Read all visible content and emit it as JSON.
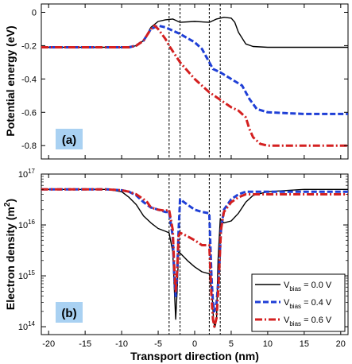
{
  "chart_data": [
    {
      "type": "line",
      "panel_label": "(a)",
      "ylabel": "Potential energy (eV)",
      "xlim": [
        -21,
        21
      ],
      "ylim": [
        -0.88,
        0.05
      ],
      "y_ticks": [
        0,
        -0.2,
        -0.4,
        -0.6,
        -0.8
      ],
      "y_tick_labels": [
        "0",
        "-0.2",
        "-0.4",
        "-0.6",
        "-0.8"
      ],
      "grid": false,
      "vertical_dashed_lines_x": [
        -3.5,
        -2.0,
        2.0,
        3.5
      ],
      "series": [
        {
          "color": "#000000",
          "style": "solid",
          "x": [
            -21,
            -11,
            -9,
            -8,
            -7,
            -6,
            -5,
            -4,
            -3,
            -2,
            0,
            2,
            3,
            4,
            5,
            5.5,
            6,
            7,
            8,
            10,
            15,
            21
          ],
          "y": [
            -0.21,
            -0.21,
            -0.21,
            -0.2,
            -0.17,
            -0.09,
            -0.055,
            -0.045,
            -0.04,
            -0.06,
            -0.055,
            -0.06,
            -0.04,
            -0.03,
            -0.035,
            -0.06,
            -0.12,
            -0.19,
            -0.205,
            -0.21,
            -0.21,
            -0.21
          ]
        },
        {
          "color": "#1f3fd6",
          "style": "dashed",
          "x": [
            -21,
            -11,
            -9,
            -8,
            -7,
            -6,
            -5,
            -4,
            -3.5,
            -2,
            0,
            1,
            2,
            2.5,
            3.5,
            5,
            6.5,
            7.5,
            8.5,
            10,
            15,
            21
          ],
          "y": [
            -0.21,
            -0.21,
            -0.21,
            -0.2,
            -0.17,
            -0.1,
            -0.08,
            -0.09,
            -0.1,
            -0.13,
            -0.18,
            -0.22,
            -0.3,
            -0.34,
            -0.36,
            -0.4,
            -0.44,
            -0.52,
            -0.58,
            -0.6,
            -0.61,
            -0.61
          ]
        },
        {
          "color": "#d42020",
          "style": "dashdot",
          "x": [
            -21,
            -11,
            -9,
            -8,
            -7,
            -6,
            -5.5,
            -5,
            -4,
            -3.5,
            -2,
            0,
            2,
            4,
            5,
            6,
            7,
            7.5,
            8,
            9,
            10,
            15,
            21
          ],
          "y": [
            -0.21,
            -0.21,
            -0.21,
            -0.2,
            -0.17,
            -0.1,
            -0.08,
            -0.1,
            -0.16,
            -0.2,
            -0.3,
            -0.4,
            -0.48,
            -0.54,
            -0.57,
            -0.59,
            -0.63,
            -0.7,
            -0.75,
            -0.79,
            -0.8,
            -0.8,
            -0.8
          ]
        }
      ]
    },
    {
      "type": "line",
      "panel_label": "(b)",
      "xlabel": "Transport direction (nm)",
      "ylabel": "Electron density (m",
      "ylabel_sup": "2",
      "ylabel_end": ")",
      "xlim": [
        -21,
        21
      ],
      "x_ticks": [
        -20,
        -15,
        -10,
        -5,
        0,
        5,
        10,
        15,
        20
      ],
      "x_tick_labels": [
        "-20",
        "-15",
        "-10",
        "-5",
        "0",
        "5",
        "10",
        "15",
        "20"
      ],
      "y_scale": "log",
      "ylim": [
        70000000000000.0,
        1e+17
      ],
      "y_ticks": [
        100000000000000.0,
        1000000000000000.0,
        1e+16,
        1e+17
      ],
      "y_tick_base": "10",
      "y_tick_exponents": [
        "14",
        "15",
        "16",
        "17"
      ],
      "grid": false,
      "vertical_dashed_lines_x": [
        -3.5,
        -2.0,
        2.0,
        3.5
      ],
      "series": [
        {
          "name_base": "V",
          "name_sub": "bias",
          "name_value": "= 0.0 V",
          "color": "#000000",
          "style": "solid",
          "x": [
            -21,
            -12,
            -10,
            -9,
            -8,
            -7,
            -6,
            -5,
            -4,
            -3.5,
            -3,
            -2.8,
            -2.6,
            -2.4,
            -2.2,
            -2,
            -1,
            0,
            1,
            2,
            2.4,
            2.6,
            2.8,
            3.0,
            3.2,
            3.5,
            4,
            5,
            6,
            7,
            8,
            10,
            15,
            21
          ],
          "y": [
            5e+16,
            5e+16,
            4.5e+16,
            3.5e+16,
            2.5e+16,
            1.5e+16,
            1.1e+16,
            8500000000000000.0,
            7500000000000000.0,
            7000000000000000.0,
            3000000000000000.0,
            600000000000000.0,
            140000000000000.0,
            500000000000000.0,
            3000000000000000.0,
            2800000000000000.0,
            2000000000000000.0,
            1500000000000000.0,
            1200000000000000.0,
            1100000000000000.0,
            400000000000000.0,
            120000000000000.0,
            100000000000000.0,
            150000000000000.0,
            2000000000000000.0,
            1.3e+16,
            1.1e+16,
            1.2e+16,
            1.7e+16,
            2.8e+16,
            3.8e+16,
            4.5e+16,
            5e+16,
            5e+16
          ]
        },
        {
          "name_base": "V",
          "name_sub": "bias",
          "name_value": "= 0.4 V",
          "color": "#1f3fd6",
          "style": "dashed",
          "x": [
            -21,
            -12,
            -10,
            -9,
            -8,
            -7,
            -6,
            -5,
            -4,
            -3.5,
            -3,
            -2.8,
            -2.6,
            -2.4,
            -2.2,
            -2,
            -1,
            0,
            1,
            2,
            2.3,
            2.5,
            2.7,
            3.0,
            3.3,
            3.6,
            4,
            5,
            6,
            7,
            8,
            10,
            15,
            21
          ],
          "y": [
            5e+16,
            5e+16,
            4.8e+16,
            4.5e+16,
            3.8e+16,
            2.8e+16,
            2.2e+16,
            2e+16,
            1.8e+16,
            1.8e+16,
            6000000000000000.0,
            1000000000000000.0,
            400000000000000.0,
            1000000000000000.0,
            8000000000000000.0,
            3.2e+16,
            2.5e+16,
            2e+16,
            1.8e+16,
            1.7e+16,
            1000000000000000.0,
            300000000000000.0,
            200000000000000.0,
            300000000000000.0,
            1000000000000000.0,
            8000000000000000.0,
            2e+16,
            3.2e+16,
            4e+16,
            4.5e+16,
            4.5e+16,
            4.5e+16,
            4.5e+16,
            4.5e+16
          ]
        },
        {
          "name_base": "V",
          "name_sub": "bias",
          "name_value": "= 0.6 V",
          "color": "#d42020",
          "style": "dashdot",
          "x": [
            -21,
            -12,
            -10,
            -9,
            -8,
            -7,
            -6.5,
            -6,
            -5,
            -4,
            -3.5,
            -3,
            -2.8,
            -2.6,
            -2.4,
            -2.2,
            -2,
            -1,
            0,
            1,
            2,
            2.3,
            2.5,
            2.7,
            3.0,
            3.3,
            3.6,
            4,
            5,
            6,
            7,
            8,
            10,
            15,
            21
          ],
          "y": [
            5e+16,
            5e+16,
            4.8e+16,
            4.5e+16,
            4e+16,
            3.2e+16,
            2.8e+16,
            2.2e+16,
            2e+16,
            1.9e+16,
            2e+16,
            8000000000000000.0,
            1500000000000000.0,
            500000000000000.0,
            1200000000000000.0,
            6000000000000000.0,
            7000000000000000.0,
            6000000000000000.0,
            5000000000000000.0,
            4000000000000000.0,
            4000000000000000.0,
            400000000000000.0,
            140000000000000.0,
            100000000000000.0,
            150000000000000.0,
            800000000000000.0,
            8000000000000000.0,
            1.8e+16,
            2.8e+16,
            3.5e+16,
            4e+16,
            4e+16,
            4e+16,
            4e+16,
            4e+16
          ]
        }
      ]
    }
  ]
}
